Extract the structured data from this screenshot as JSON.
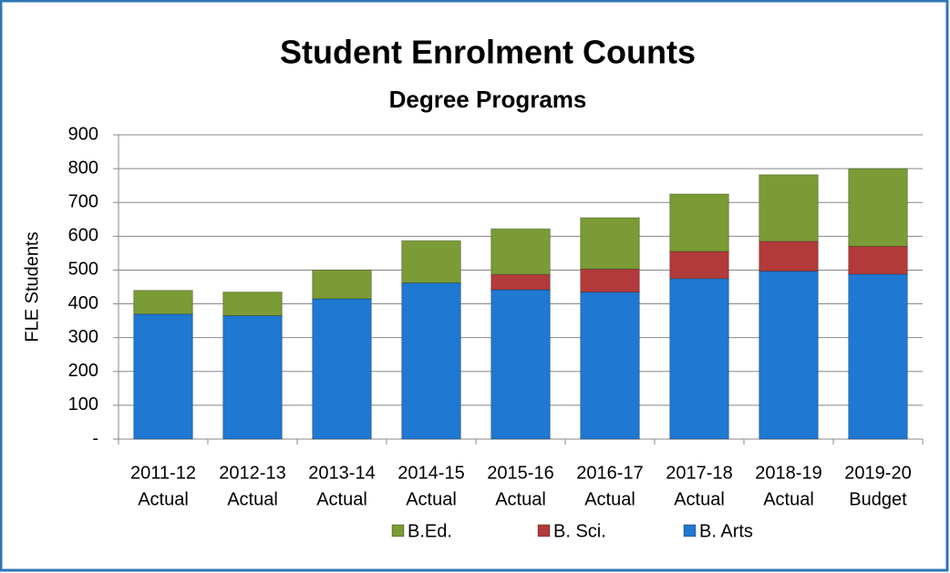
{
  "chart_data": {
    "type": "stacked-bar",
    "title": "Student Enrolment Counts",
    "subtitle": "Degree Programs",
    "y_label": "FLE Students",
    "categories": [
      [
        "2011-12",
        "Actual"
      ],
      [
        "2012-13",
        "Actual"
      ],
      [
        "2013-14",
        "Actual"
      ],
      [
        "2014-15",
        "Actual"
      ],
      [
        "2015-16",
        "Actual"
      ],
      [
        "2016-17",
        "Actual"
      ],
      [
        "2017-18",
        "Actual"
      ],
      [
        "2018-19",
        "Actual"
      ],
      [
        "2019-20",
        "Budget"
      ]
    ],
    "series": [
      {
        "name": "B. Arts",
        "color": "#1f78d1",
        "values": [
          370,
          365,
          415,
          462,
          442,
          435,
          475,
          497,
          488
        ]
      },
      {
        "name": "B. Sci.",
        "color": "#b23a3a",
        "values": [
          0,
          0,
          0,
          0,
          45,
          68,
          80,
          88,
          82
        ]
      },
      {
        "name": "B.Ed.",
        "color": "#7a9b36",
        "values": [
          70,
          70,
          85,
          125,
          135,
          152,
          170,
          197,
          230
        ]
      }
    ],
    "ylim": [
      0,
      900
    ],
    "yticks": [
      {
        "value": 0,
        "label": "-"
      },
      100,
      200,
      300,
      400,
      500,
      600,
      700,
      800,
      900
    ],
    "grid": true,
    "legend": "bottom"
  }
}
